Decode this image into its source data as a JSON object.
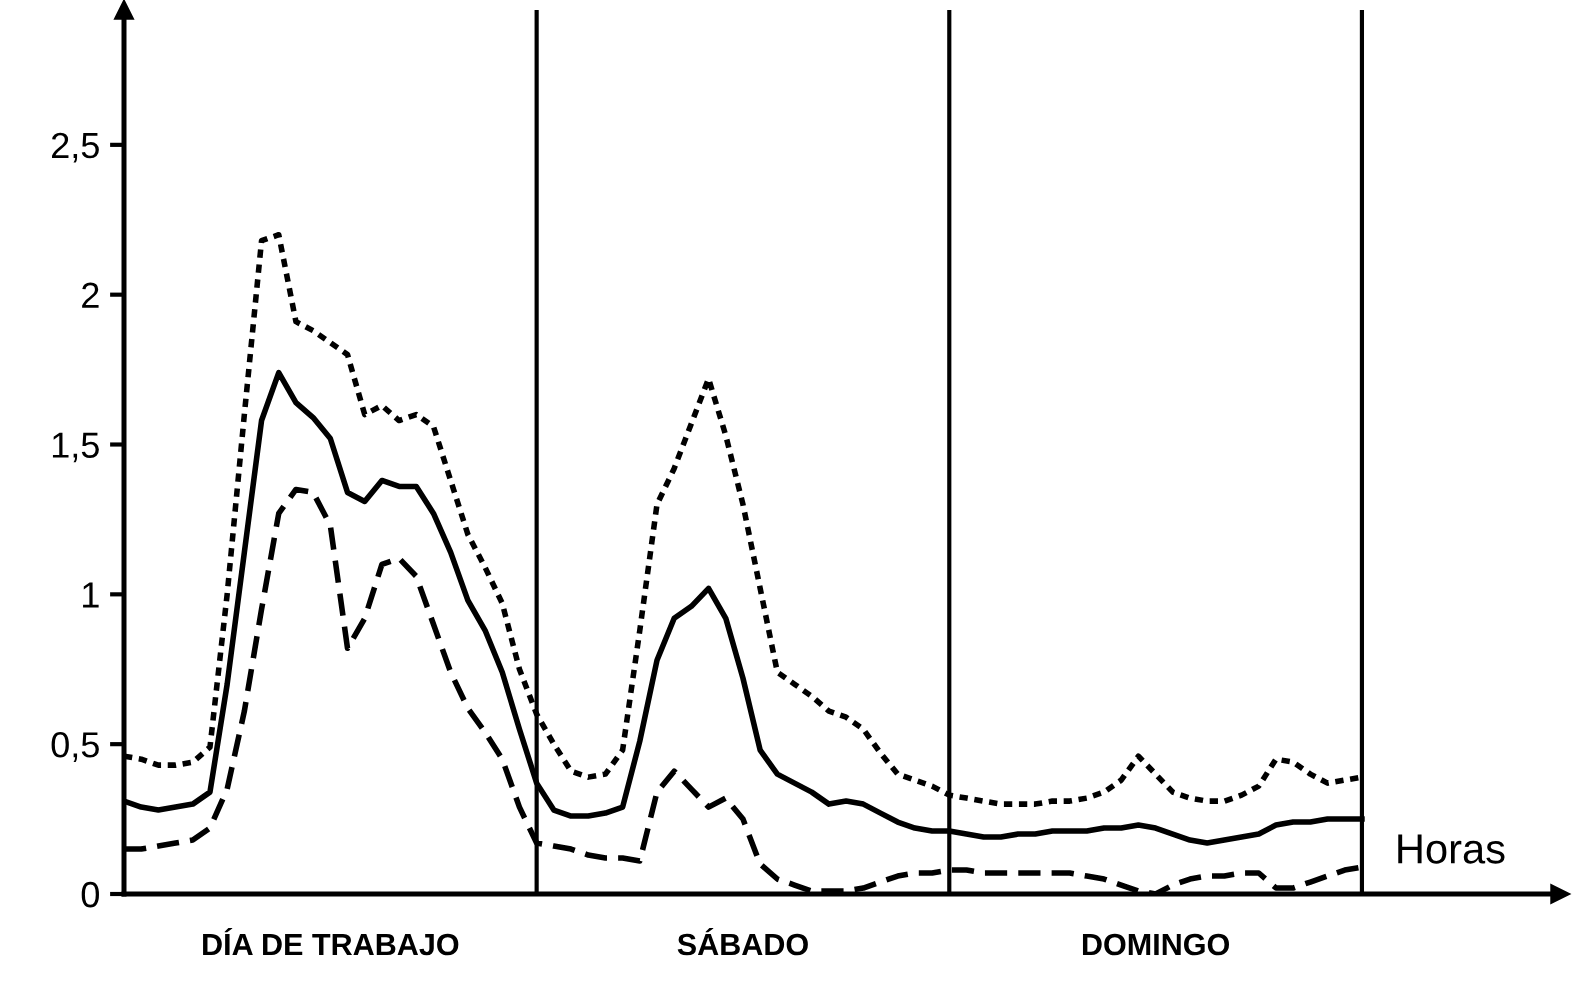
{
  "chart_data": {
    "type": "line",
    "xlabel": "Horas",
    "ylim": [
      0,
      2.95
    ],
    "categories": [
      null,
      null,
      null,
      null,
      null,
      null,
      null,
      null,
      null,
      null,
      null,
      null,
      null,
      null,
      null,
      null,
      null,
      null,
      null,
      null,
      null,
      null,
      null,
      null,
      null,
      null,
      null,
      null,
      null,
      null,
      null,
      null,
      null,
      null,
      null,
      null,
      null,
      null,
      null,
      null,
      null,
      null,
      null,
      null,
      null,
      null,
      null,
      null,
      null,
      null,
      null,
      null,
      null,
      null,
      null,
      null,
      null,
      null,
      null,
      null,
      null,
      null,
      null,
      null,
      null,
      null,
      null,
      null,
      null,
      null,
      null,
      null,
      null
    ],
    "yticks": [
      0,
      {
        "value": 0.5,
        "label": "0,5"
      },
      1,
      {
        "value": 1.5,
        "label": "1,5"
      },
      2,
      {
        "value": 2.5,
        "label": "2,5"
      }
    ],
    "grid": "x",
    "marker": "none",
    "series": [
      {
        "color": "#000000",
        "line_style": "solid",
        "values": [
          0.31,
          0.29,
          0.28,
          0.29,
          0.3,
          0.34,
          0.7,
          1.14,
          1.58,
          1.74,
          1.64,
          1.59,
          1.52,
          1.34,
          1.31,
          1.38,
          1.36,
          1.36,
          1.27,
          1.14,
          0.98,
          0.88,
          0.74,
          0.55,
          0.37,
          0.28,
          0.26,
          0.26,
          0.27,
          0.29,
          0.51,
          0.78,
          0.92,
          0.96,
          1.02,
          0.92,
          0.72,
          0.48,
          0.4,
          0.37,
          0.34,
          0.3,
          0.31,
          0.3,
          0.27,
          0.24,
          0.22,
          0.21,
          0.21,
          0.2,
          0.19,
          0.19,
          0.2,
          0.2,
          0.21,
          0.21,
          0.21,
          0.22,
          0.22,
          0.23,
          0.22,
          0.2,
          0.18,
          0.17,
          0.18,
          0.19,
          0.2,
          0.23,
          0.24,
          0.24,
          0.25,
          0.25,
          0.25
        ]
      },
      {
        "color": "#000000",
        "line_style": "dotted",
        "values": [
          0.46,
          0.45,
          0.43,
          0.43,
          0.44,
          0.49,
          1.0,
          1.6,
          2.18,
          2.2,
          1.91,
          1.88,
          1.84,
          1.8,
          1.6,
          1.63,
          1.58,
          1.6,
          1.56,
          1.38,
          1.2,
          1.09,
          0.97,
          0.75,
          0.6,
          0.5,
          0.41,
          0.39,
          0.4,
          0.48,
          0.88,
          1.3,
          1.42,
          1.57,
          1.72,
          1.53,
          1.3,
          1.02,
          0.74,
          0.7,
          0.66,
          0.61,
          0.59,
          0.55,
          0.47,
          0.4,
          0.38,
          0.36,
          0.33,
          0.32,
          0.31,
          0.3,
          0.3,
          0.3,
          0.31,
          0.31,
          0.32,
          0.34,
          0.38,
          0.46,
          0.4,
          0.34,
          0.32,
          0.31,
          0.31,
          0.33,
          0.36,
          0.45,
          0.44,
          0.4,
          0.37,
          0.38,
          0.39
        ]
      },
      {
        "color": "#000000",
        "line_style": "dashed",
        "values": [
          0.15,
          0.15,
          0.16,
          0.17,
          0.18,
          0.22,
          0.35,
          0.61,
          0.95,
          1.27,
          1.35,
          1.34,
          1.23,
          0.82,
          0.92,
          1.1,
          1.12,
          1.06,
          0.9,
          0.74,
          0.62,
          0.54,
          0.45,
          0.29,
          0.17,
          0.16,
          0.15,
          0.13,
          0.12,
          0.12,
          0.11,
          0.34,
          0.41,
          0.35,
          0.29,
          0.32,
          0.25,
          0.1,
          0.05,
          0.03,
          0.01,
          0.01,
          0.01,
          0.02,
          0.04,
          0.06,
          0.07,
          0.07,
          0.08,
          0.08,
          0.07,
          0.07,
          0.07,
          0.07,
          0.07,
          0.07,
          0.06,
          0.05,
          0.03,
          0.01,
          0,
          0.03,
          0.05,
          0.06,
          0.06,
          0.07,
          0.07,
          0.02,
          0.02,
          0.04,
          0.06,
          0.08,
          0.09
        ]
      }
    ],
    "annotations": [
      "DÍA DE TRABAJO",
      "SÁBADO",
      "DOMINGO"
    ]
  }
}
